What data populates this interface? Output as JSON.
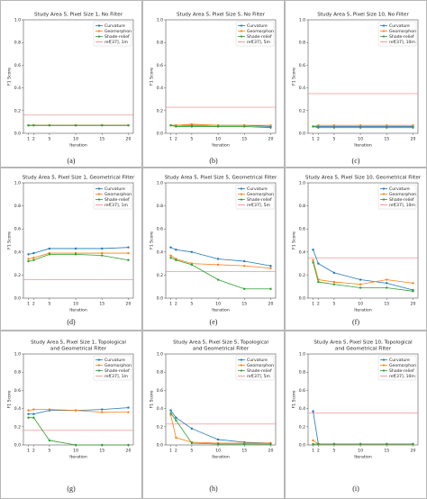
{
  "chart_data": [
    {
      "type": "line",
      "title": [
        "Study Area 5, Pixel Size 1, No Filter"
      ],
      "caption": "(a)",
      "xlabel": "Iteration",
      "ylabel": "F1 Score",
      "x": [
        1,
        2,
        5,
        10,
        15,
        20
      ],
      "xlim": [
        0.05,
        20.95
      ],
      "xticks": [
        1,
        2,
        5,
        10,
        15,
        20
      ],
      "ylim": [
        0,
        1
      ],
      "yticks": [
        {
          "value": 0,
          "label": "0.0"
        },
        {
          "value": 0.2,
          "label": "0.2"
        },
        {
          "value": 0.4,
          "label": "0.4"
        },
        {
          "value": 0.6,
          "label": "0.6"
        },
        {
          "value": 0.8,
          "label": "0.8"
        },
        {
          "value": 1,
          "label": "1.0"
        }
      ],
      "legend": "upper right",
      "series": [
        {
          "name": "Curvature",
          "color": "#1f77b4",
          "values": [
            0.07,
            0.07,
            0.07,
            0.07,
            0.07,
            0.07
          ]
        },
        {
          "name": "Geomorphon",
          "color": "#ff7f0e",
          "values": [
            0.07,
            0.07,
            0.07,
            0.07,
            0.07,
            0.07
          ]
        },
        {
          "name": "Shade-relief",
          "color": "#2ca02c",
          "values": [
            0.07,
            0.07,
            0.07,
            0.07,
            0.07,
            0.07
          ]
        }
      ],
      "ref_line": {
        "name": "ref[37], 1m",
        "color": "#f08080",
        "value": 0.16
      }
    },
    {
      "type": "line",
      "title": [
        "Study Area 5, Pixel Size 5, No Filter"
      ],
      "caption": "(b)",
      "xlabel": "Iteration",
      "ylabel": "F1 Score",
      "x": [
        1,
        2,
        5,
        10,
        15,
        20
      ],
      "xlim": [
        0.05,
        20.95
      ],
      "xticks": [
        1,
        2,
        5,
        10,
        15,
        20
      ],
      "ylim": [
        0,
        1
      ],
      "yticks": [
        {
          "value": 0,
          "label": "0.0"
        },
        {
          "value": 0.2,
          "label": "0.2"
        },
        {
          "value": 0.4,
          "label": "0.4"
        },
        {
          "value": 0.6,
          "label": "0.6"
        },
        {
          "value": 0.8,
          "label": "0.8"
        },
        {
          "value": 1,
          "label": "1.0"
        }
      ],
      "legend": "upper right",
      "series": [
        {
          "name": "Curvature",
          "color": "#1f77b4",
          "values": [
            0.07,
            0.07,
            0.07,
            0.07,
            0.07,
            0.06
          ]
        },
        {
          "name": "Geomorphon",
          "color": "#ff7f0e",
          "values": [
            0.07,
            0.07,
            0.08,
            0.07,
            0.07,
            0.07
          ]
        },
        {
          "name": "Shade-relief",
          "color": "#2ca02c",
          "values": [
            0.07,
            0.06,
            0.06,
            0.06,
            0.06,
            0.05
          ]
        }
      ],
      "ref_line": {
        "name": "ref[37], 5m",
        "color": "#f08080",
        "value": 0.23
      }
    },
    {
      "type": "line",
      "title": [
        "Study Area 5, Pixel Size 10, No Filter"
      ],
      "caption": "(c)",
      "xlabel": "Iteration",
      "ylabel": "F1 Score",
      "x": [
        1,
        2,
        5,
        10,
        15,
        20
      ],
      "xlim": [
        0.05,
        20.95
      ],
      "xticks": [
        1,
        2,
        5,
        10,
        15,
        20
      ],
      "ylim": [
        0,
        1
      ],
      "yticks": [
        {
          "value": 0,
          "label": "0.0"
        },
        {
          "value": 0.2,
          "label": "0.2"
        },
        {
          "value": 0.4,
          "label": "0.4"
        },
        {
          "value": 0.6,
          "label": "0.6"
        },
        {
          "value": 0.8,
          "label": "0.8"
        },
        {
          "value": 1,
          "label": "1.0"
        }
      ],
      "legend": "upper right",
      "series": [
        {
          "name": "Curvature",
          "color": "#1f77b4",
          "values": [
            0.06,
            0.06,
            0.06,
            0.06,
            0.06,
            0.06
          ]
        },
        {
          "name": "Geomorphon",
          "color": "#ff7f0e",
          "values": [
            0.06,
            0.07,
            0.07,
            0.07,
            0.07,
            0.07
          ]
        },
        {
          "name": "Shade-relief",
          "color": "#2ca02c",
          "values": [
            0.06,
            0.05,
            0.05,
            0.05,
            0.05,
            0.05
          ]
        }
      ],
      "ref_line": {
        "name": "ref[37], 10m",
        "color": "#f08080",
        "value": 0.35
      }
    },
    {
      "type": "line",
      "title": [
        "Study Area 5, Pixel Size 1, Geometrical Filter"
      ],
      "caption": "(d)",
      "xlabel": "Iteration",
      "ylabel": "F1 Score",
      "x": [
        1,
        2,
        5,
        10,
        15,
        20
      ],
      "xlim": [
        0.05,
        20.95
      ],
      "xticks": [
        1,
        2,
        5,
        10,
        15,
        20
      ],
      "ylim": [
        0,
        1
      ],
      "yticks": [
        {
          "value": 0,
          "label": "0.0"
        },
        {
          "value": 0.2,
          "label": "0.2"
        },
        {
          "value": 0.4,
          "label": "0.4"
        },
        {
          "value": 0.6,
          "label": "0.6"
        },
        {
          "value": 0.8,
          "label": "0.8"
        },
        {
          "value": 1,
          "label": "1.0"
        }
      ],
      "legend": "upper right",
      "series": [
        {
          "name": "Curvature",
          "color": "#1f77b4",
          "values": [
            0.38,
            0.39,
            0.43,
            0.43,
            0.43,
            0.44
          ]
        },
        {
          "name": "Geomorphon",
          "color": "#ff7f0e",
          "values": [
            0.34,
            0.35,
            0.39,
            0.39,
            0.39,
            0.39
          ]
        },
        {
          "name": "Shade-relief",
          "color": "#2ca02c",
          "values": [
            0.32,
            0.33,
            0.38,
            0.38,
            0.37,
            0.33
          ]
        }
      ],
      "ref_line": {
        "name": "ref[37], 1m",
        "color": "#f08080",
        "value": 0.16
      }
    },
    {
      "type": "line",
      "title": [
        "Study Area 5, Pixel Size 5, Geometrical Filter"
      ],
      "caption": "(e)",
      "xlabel": "Iteration",
      "ylabel": "F1 Score",
      "x": [
        1,
        2,
        5,
        10,
        15,
        20
      ],
      "xlim": [
        0.05,
        20.95
      ],
      "xticks": [
        1,
        2,
        5,
        10,
        15,
        20
      ],
      "ylim": [
        0,
        1
      ],
      "yticks": [
        {
          "value": 0,
          "label": "0.0"
        },
        {
          "value": 0.2,
          "label": "0.2"
        },
        {
          "value": 0.4,
          "label": "0.4"
        },
        {
          "value": 0.6,
          "label": "0.6"
        },
        {
          "value": 0.8,
          "label": "0.8"
        },
        {
          "value": 1,
          "label": "1.0"
        }
      ],
      "legend": "upper right",
      "series": [
        {
          "name": "Curvature",
          "color": "#1f77b4",
          "values": [
            0.44,
            0.42,
            0.4,
            0.34,
            0.32,
            0.28
          ]
        },
        {
          "name": "Geomorphon",
          "color": "#ff7f0e",
          "values": [
            0.37,
            0.34,
            0.3,
            0.29,
            0.28,
            0.26
          ]
        },
        {
          "name": "Shade-relief",
          "color": "#2ca02c",
          "values": [
            0.35,
            0.33,
            0.29,
            0.16,
            0.08,
            0.08
          ]
        }
      ],
      "ref_line": {
        "name": "ref[37], 5m",
        "color": "#f08080",
        "value": 0.23
      }
    },
    {
      "type": "line",
      "title": [
        "Study Area 5, Pixel Size 10, Geometrical Filter"
      ],
      "caption": "(f)",
      "xlabel": "Iteration",
      "ylabel": "F1 Score",
      "x": [
        1,
        2,
        5,
        10,
        15,
        20
      ],
      "xlim": [
        0.05,
        20.95
      ],
      "xticks": [
        1,
        2,
        5,
        10,
        15,
        20
      ],
      "ylim": [
        0,
        1
      ],
      "yticks": [
        {
          "value": 0,
          "label": "0.0"
        },
        {
          "value": 0.2,
          "label": "0.2"
        },
        {
          "value": 0.4,
          "label": "0.4"
        },
        {
          "value": 0.6,
          "label": "0.6"
        },
        {
          "value": 0.8,
          "label": "0.8"
        },
        {
          "value": 1,
          "label": "1.0"
        }
      ],
      "legend": "upper right",
      "series": [
        {
          "name": "Curvature",
          "color": "#1f77b4",
          "values": [
            0.42,
            0.3,
            0.22,
            0.16,
            0.13,
            0.07
          ]
        },
        {
          "name": "Geomorphon",
          "color": "#ff7f0e",
          "values": [
            0.33,
            0.16,
            0.14,
            0.12,
            0.16,
            0.13
          ]
        },
        {
          "name": "Shade-relief",
          "color": "#2ca02c",
          "values": [
            0.31,
            0.14,
            0.12,
            0.09,
            0.09,
            0.06
          ]
        }
      ],
      "ref_line": {
        "name": "ref[37], 10m",
        "color": "#f08080",
        "value": 0.35
      }
    },
    {
      "type": "line",
      "title": [
        "Study Area 5, Pixel Size 1, Topological",
        "and Geometrical Filter"
      ],
      "caption": "(g)",
      "xlabel": "Iteration",
      "ylabel": "F1 Score",
      "x": [
        1,
        2,
        5,
        10,
        15,
        20
      ],
      "xlim": [
        0.05,
        20.95
      ],
      "xticks": [
        1,
        2,
        5,
        10,
        15,
        20
      ],
      "ylim": [
        0,
        1
      ],
      "yticks": [
        {
          "value": 0,
          "label": "0.0"
        },
        {
          "value": 0.2,
          "label": "0.2"
        },
        {
          "value": 0.4,
          "label": "0.4"
        },
        {
          "value": 0.6,
          "label": "0.6"
        },
        {
          "value": 0.8,
          "label": "0.8"
        },
        {
          "value": 1,
          "label": "1.0"
        }
      ],
      "legend": "upper right",
      "series": [
        {
          "name": "Curvature",
          "color": "#1f77b4",
          "values": [
            0.34,
            0.34,
            0.38,
            0.38,
            0.39,
            0.41
          ]
        },
        {
          "name": "Geomorphon",
          "color": "#ff7f0e",
          "values": [
            0.38,
            0.39,
            0.39,
            0.38,
            0.36,
            0.36
          ]
        },
        {
          "name": "Shade-relief",
          "color": "#2ca02c",
          "values": [
            0.3,
            0.3,
            0.05,
            0.0,
            0.0,
            0.0
          ]
        }
      ],
      "ref_line": {
        "name": "ref[37], 1m",
        "color": "#f08080",
        "value": 0.16
      }
    },
    {
      "type": "line",
      "title": [
        "Study Area 5, Pixel Size 5, Topological",
        "and Geometrical Filter"
      ],
      "caption": "(h)",
      "xlabel": "Iteration",
      "ylabel": "F1 Score",
      "x": [
        1,
        2,
        5,
        10,
        15,
        20
      ],
      "xlim": [
        0.05,
        20.95
      ],
      "xticks": [
        1,
        2,
        5,
        10,
        15,
        20
      ],
      "ylim": [
        0,
        1
      ],
      "yticks": [
        {
          "value": 0,
          "label": "0.0"
        },
        {
          "value": 0.2,
          "label": "0.2"
        },
        {
          "value": 0.4,
          "label": "0.4"
        },
        {
          "value": 0.6,
          "label": "0.6"
        },
        {
          "value": 0.8,
          "label": "0.8"
        },
        {
          "value": 1,
          "label": "1.0"
        }
      ],
      "legend": "upper right",
      "series": [
        {
          "name": "Curvature",
          "color": "#1f77b4",
          "values": [
            0.38,
            0.3,
            0.18,
            0.06,
            0.03,
            0.02
          ]
        },
        {
          "name": "Geomorphon",
          "color": "#ff7f0e",
          "values": [
            0.33,
            0.08,
            0.03,
            0.02,
            0.02,
            0.02
          ]
        },
        {
          "name": "Shade-relief",
          "color": "#2ca02c",
          "values": [
            0.35,
            0.27,
            0.02,
            0.01,
            0.01,
            0.01
          ]
        }
      ],
      "ref_line": {
        "name": "ref[37], 5m",
        "color": "#f08080",
        "value": 0.23
      }
    },
    {
      "type": "line",
      "title": [
        "Study Area 5, Pixel Size 10, Topological",
        "and Geometrical Filter"
      ],
      "caption": "(i)",
      "xlabel": "Iteration",
      "ylabel": "F1 Score",
      "x": [
        1,
        2,
        5,
        10,
        15,
        20
      ],
      "xlim": [
        0.05,
        20.95
      ],
      "xticks": [
        1,
        2,
        5,
        10,
        15,
        20
      ],
      "ylim": [
        0,
        1
      ],
      "yticks": [
        {
          "value": 0,
          "label": "0.0"
        },
        {
          "value": 0.2,
          "label": "0.2"
        },
        {
          "value": 0.4,
          "label": "0.4"
        },
        {
          "value": 0.6,
          "label": "0.6"
        },
        {
          "value": 0.8,
          "label": "0.8"
        },
        {
          "value": 1,
          "label": "1.0"
        }
      ],
      "legend": "upper right",
      "series": [
        {
          "name": "Curvature",
          "color": "#1f77b4",
          "values": [
            0.37,
            0.01,
            0.01,
            0.01,
            0.01,
            0.01
          ]
        },
        {
          "name": "Geomorphon",
          "color": "#ff7f0e",
          "values": [
            0.05,
            0.01,
            0.01,
            0.01,
            0.01,
            0.01
          ]
        },
        {
          "name": "Shade-relief",
          "color": "#2ca02c",
          "values": [
            0.01,
            0.01,
            0.01,
            0.01,
            0.01,
            0.01
          ]
        }
      ],
      "ref_line": {
        "name": "ref[37], 10m",
        "color": "#f08080",
        "value": 0.35
      }
    }
  ]
}
